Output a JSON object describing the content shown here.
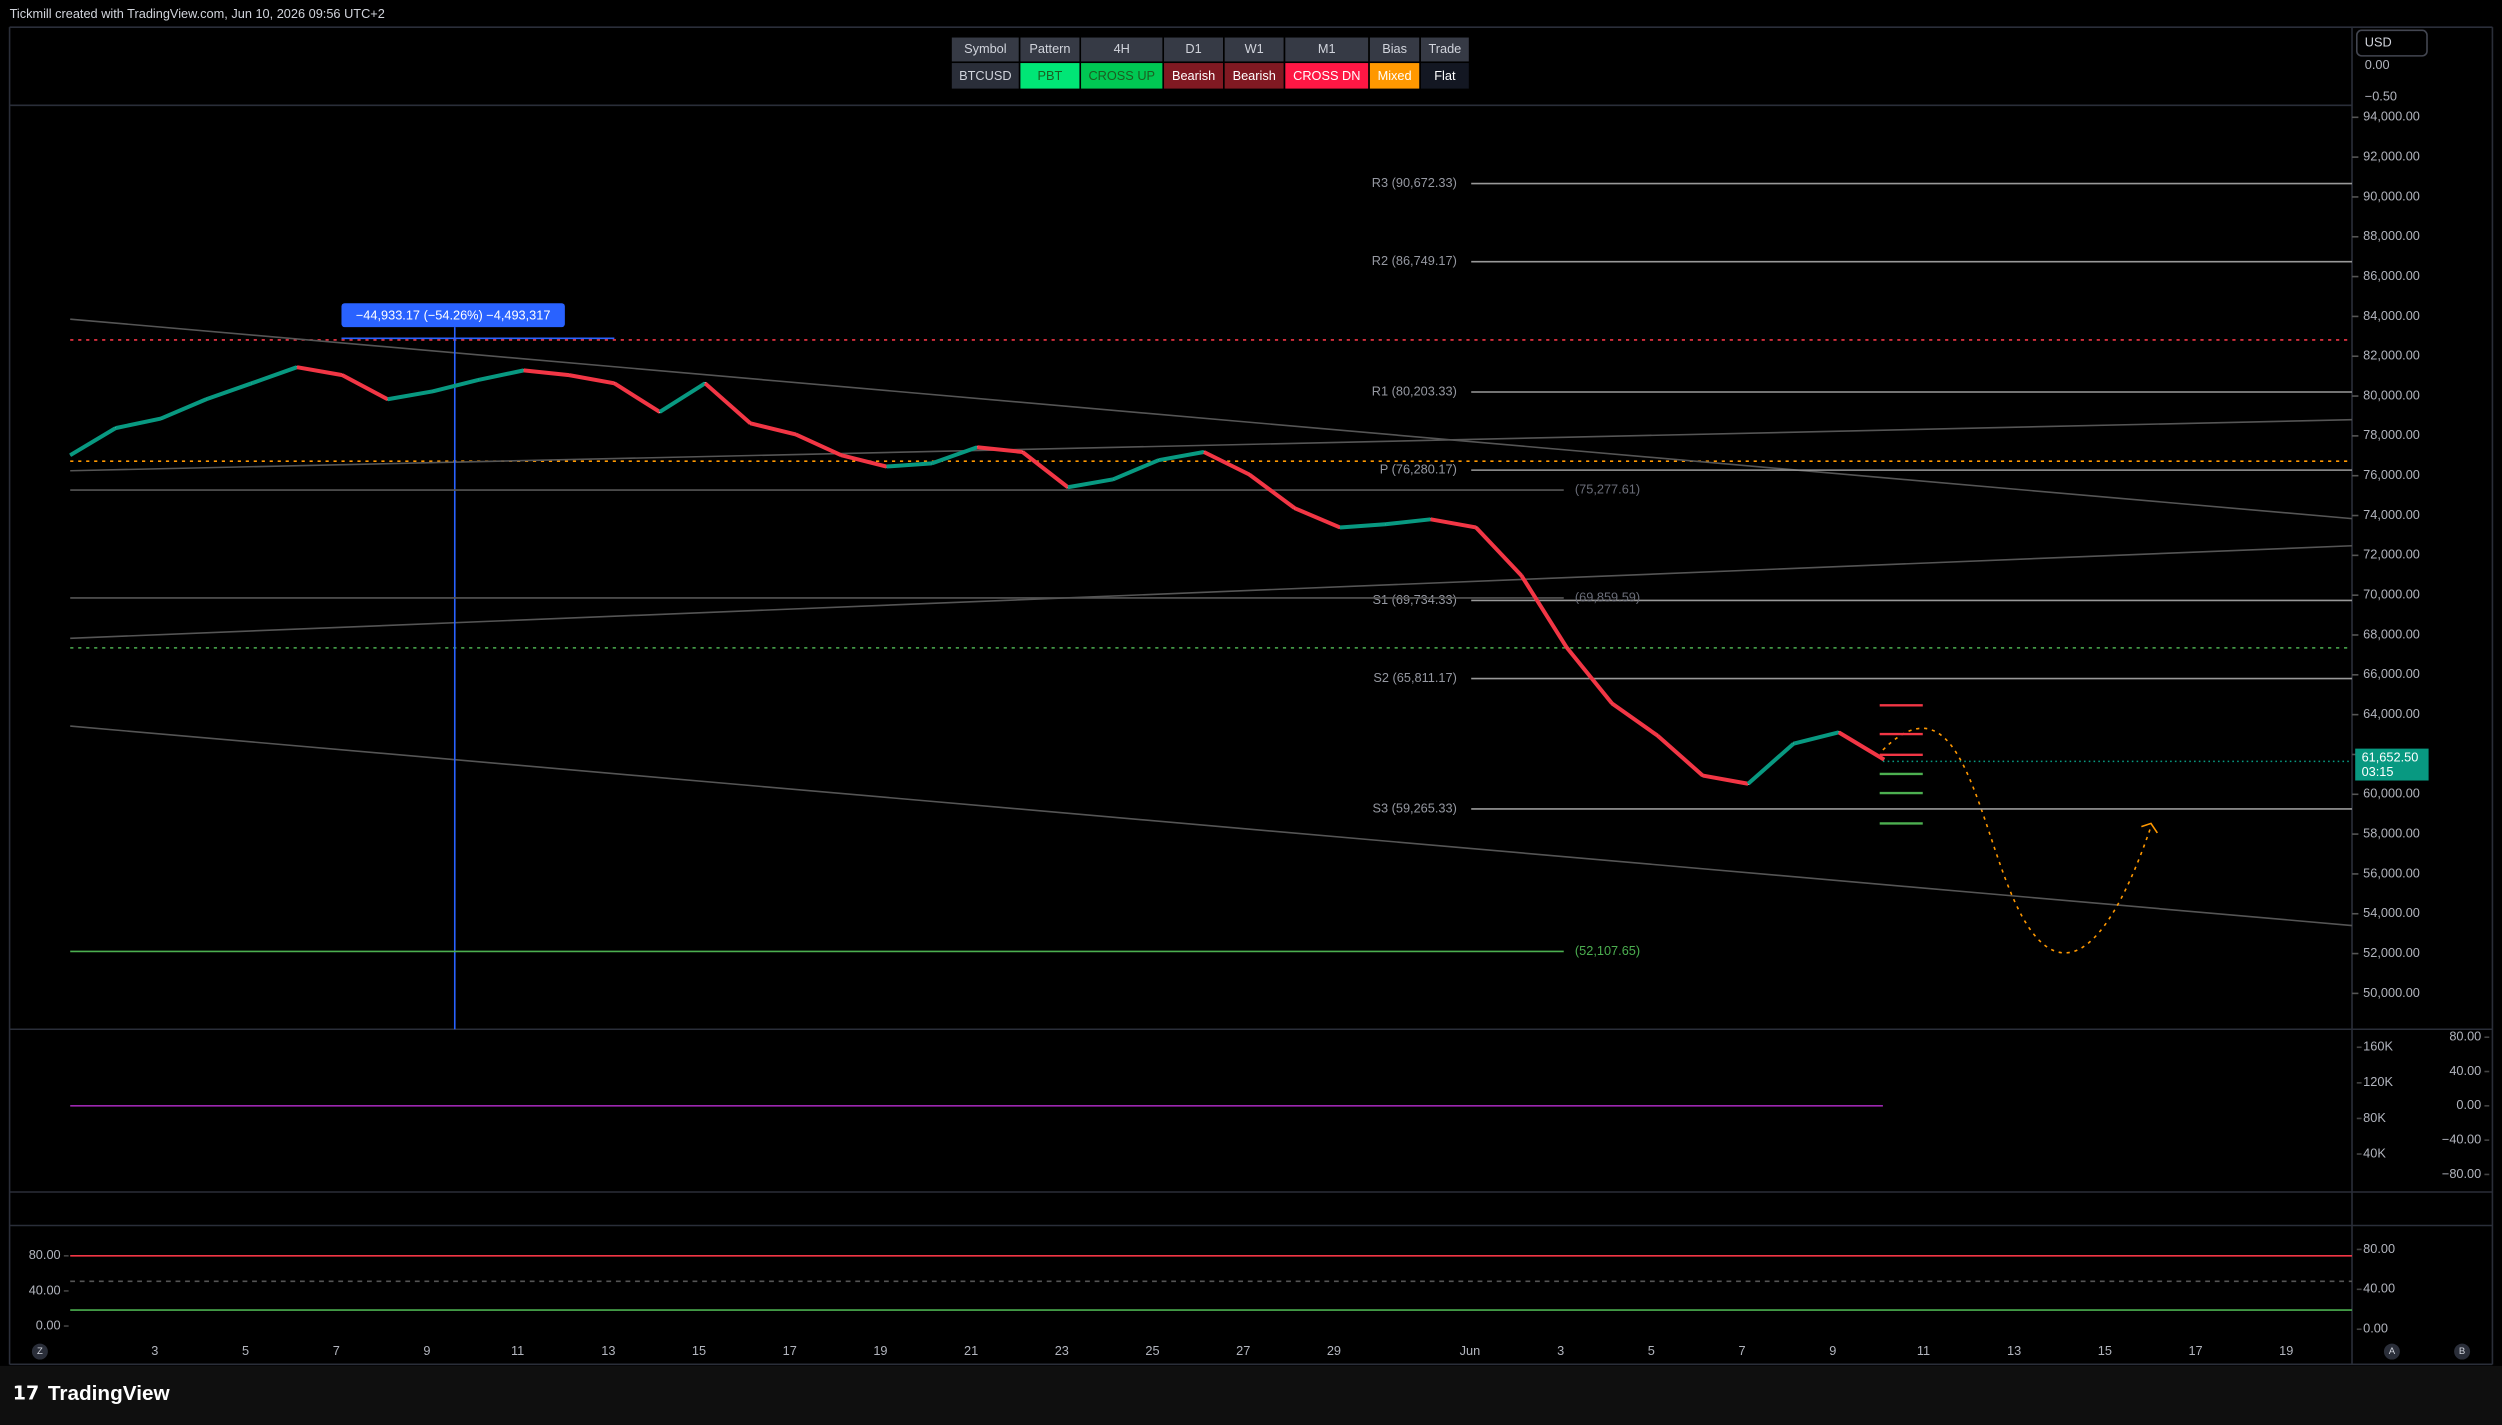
{
  "header": {
    "attribution": "Tickmill created with TradingView.com, Jun 10, 2026 09:56 UTC+2"
  },
  "summary_table": {
    "headers": [
      "Symbol",
      "Pattern",
      "4H",
      "D1",
      "W1",
      "M1",
      "Bias",
      "Trade"
    ],
    "row": [
      "BTCUSD",
      "PBT",
      "CROSS UP",
      "Bearish",
      "Bearish",
      "CROSS DN",
      "Mixed",
      "Flat"
    ]
  },
  "currency": "USD",
  "top_axis": {
    "ticks": [
      {
        "value": 0,
        "label": "0.00"
      },
      {
        "value": -0.5,
        "label": "−0.50"
      }
    ]
  },
  "price_axis": {
    "ylim": [
      48200,
      94600
    ],
    "ticks": [
      {
        "value": 94000,
        "label": "94,000.00"
      },
      {
        "value": 92000,
        "label": "92,000.00"
      },
      {
        "value": 90000,
        "label": "90,000.00"
      },
      {
        "value": 88000,
        "label": "88,000.00"
      },
      {
        "value": 86000,
        "label": "86,000.00"
      },
      {
        "value": 84000,
        "label": "84,000.00"
      },
      {
        "value": 82000,
        "label": "82,000.00"
      },
      {
        "value": 80000,
        "label": "80,000.00"
      },
      {
        "value": 78000,
        "label": "78,000.00"
      },
      {
        "value": 76000,
        "label": "76,000.00"
      },
      {
        "value": 74000,
        "label": "74,000.00"
      },
      {
        "value": 72000,
        "label": "72,000.00"
      },
      {
        "value": 70000,
        "label": "70,000.00"
      },
      {
        "value": 68000,
        "label": "68,000.00"
      },
      {
        "value": 66000,
        "label": "66,000.00"
      },
      {
        "value": 64000,
        "label": "64,000.00"
      },
      {
        "value": 62000,
        "label": "62,000.00"
      },
      {
        "value": 60000,
        "label": "60,000.00"
      },
      {
        "value": 58000,
        "label": "58,000.00"
      },
      {
        "value": 56000,
        "label": "56,000.00"
      },
      {
        "value": 54000,
        "label": "54,000.00"
      },
      {
        "value": 52000,
        "label": "52,000.00"
      },
      {
        "value": 50000,
        "label": "50,000.00"
      }
    ]
  },
  "pivots": [
    {
      "label": "R3 (90,672.33)",
      "value": 90672.33
    },
    {
      "label": "R2 (86,749.17)",
      "value": 86749.17
    },
    {
      "label": "R1 (80,203.33)",
      "value": 80203.33
    },
    {
      "label": "P (76,280.17)",
      "value": 76280.17
    },
    {
      "label": "S1 (69,734.33)",
      "value": 69734.33
    },
    {
      "label": "S2 (65,811.17)",
      "value": 65811.17
    },
    {
      "label": "S3 (59,265.33)",
      "value": 59265.33
    }
  ],
  "levels": [
    {
      "label": "(75,277.61)",
      "value": 75277.61
    },
    {
      "label": "(69,859.59)",
      "value": 69859.59
    },
    {
      "label": "(52,107.65)",
      "value": 52107.65
    }
  ],
  "measure_label": "−44,933.17 (−54.26%) −4,493,317",
  "current_price": {
    "value": 61652.5,
    "label": "61,652.50",
    "countdown": "03:15"
  },
  "price_path": {
    "values": [
      77030,
      78390,
      78870,
      79840,
      80640,
      81450,
      81050,
      79840,
      80240,
      80810,
      81290,
      81050,
      80640,
      79200,
      80640,
      78630,
      78070,
      77030,
      76460,
      76620,
      77430,
      77190,
      75420,
      75820,
      76780,
      77190,
      76060,
      74370,
      73400,
      73560,
      73810,
      73400,
      70990,
      67370,
      64560,
      62950,
      60940,
      60530,
      62540,
      63110,
      61740
    ]
  },
  "volume_axis": {
    "ticks": [
      {
        "value": 160000,
        "label": "160K"
      },
      {
        "value": 120000,
        "label": "120K"
      },
      {
        "value": 80000,
        "label": "80K"
      },
      {
        "value": 40000,
        "label": "40K"
      }
    ]
  },
  "rsi_axis": {
    "ticks": [
      {
        "value": 80,
        "label": "80.00"
      },
      {
        "value": 40,
        "label": "40.00"
      },
      {
        "value": 0,
        "label": "0.00"
      },
      {
        "value": -40,
        "label": "−40.00"
      },
      {
        "value": -80,
        "label": "−80.00"
      }
    ]
  },
  "stoch_axis_left": {
    "ticks": [
      {
        "value": 80,
        "label": "80.00"
      },
      {
        "value": 40,
        "label": "40.00"
      },
      {
        "value": 0,
        "label": "0.00"
      }
    ]
  },
  "stoch_axis_right": {
    "ticks": [
      {
        "value": 80,
        "label": "80.00"
      },
      {
        "value": 40,
        "label": "40.00"
      },
      {
        "value": 0,
        "label": "0.00"
      }
    ]
  },
  "date_axis": {
    "labels": [
      "3",
      "5",
      "7",
      "9",
      "11",
      "13",
      "15",
      "17",
      "19",
      "21",
      "23",
      "25",
      "27",
      "29",
      "Jun",
      "3",
      "5",
      "7",
      "9",
      "11",
      "13",
      "15",
      "17",
      "19"
    ]
  },
  "axis_buttons": [
    "Z",
    "A",
    "B"
  ],
  "footer": {
    "brand": "TradingView"
  }
}
